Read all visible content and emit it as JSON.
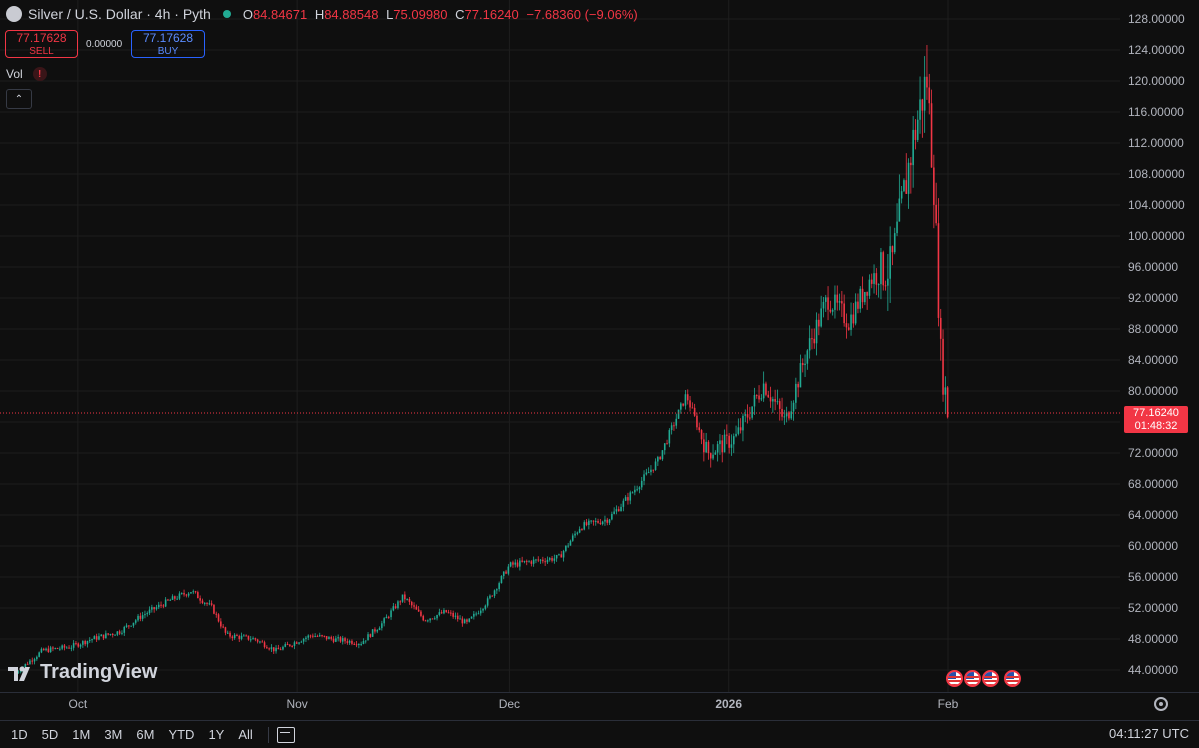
{
  "header": {
    "title": "Silver / U.S. Dollar · 4h · Pyth",
    "ohlc": {
      "o_key": "O",
      "o_val": "84.84671",
      "h_key": "H",
      "h_val": "84.88548",
      "l_key": "L",
      "l_val": "75.09980",
      "c_key": "C",
      "c_val": "77.16240",
      "change": "−7.68360 (−9.06%)"
    },
    "status_color": "#22ab94"
  },
  "trade": {
    "sell_price": "77.17628",
    "sell_label": "SELL",
    "spread": "0.00000",
    "buy_price": "77.17628",
    "buy_label": "BUY"
  },
  "indicators": {
    "vol_label": "Vol",
    "warn": "!",
    "collapse": "⌃"
  },
  "price_axis": {
    "labels": [
      "128.00000",
      "124.00000",
      "120.00000",
      "116.00000",
      "112.00000",
      "108.00000",
      "104.00000",
      "100.00000",
      "96.00000",
      "92.00000",
      "88.00000",
      "84.00000",
      "80.00000",
      "76.00000",
      "72.00000",
      "68.00000",
      "64.00000",
      "60.00000",
      "56.00000",
      "52.00000",
      "48.00000",
      "44.00000"
    ],
    "current_price": "77.16240",
    "countdown": "01:48:32"
  },
  "time_axis": {
    "labels": [
      "Oct",
      "Nov",
      "Dec",
      "2026",
      "Feb"
    ]
  },
  "branding": {
    "logo_text": "TradingView"
  },
  "bottom_bar": {
    "ranges": [
      "1D",
      "5D",
      "1M",
      "3M",
      "6M",
      "YTD",
      "1Y",
      "All"
    ],
    "clock": "04:11:27 UTC"
  },
  "colors": {
    "up": "#22ab94",
    "down": "#f23645",
    "background": "#0f0f0f",
    "grid": "#1e1e1e"
  },
  "chart_data": {
    "type": "candlestick",
    "symbol": "Silver / U.S. Dollar",
    "interval": "4h",
    "ylim": [
      42,
      130
    ],
    "points": [
      {
        "date": "2025-09-22",
        "close": 43.5
      },
      {
        "date": "2025-09-26",
        "close": 46.5
      },
      {
        "date": "2025-09-30",
        "close": 47.0
      },
      {
        "date": "2025-10-03",
        "close": 48.0
      },
      {
        "date": "2025-10-07",
        "close": 49.0
      },
      {
        "date": "2025-10-10",
        "close": 51.0
      },
      {
        "date": "2025-10-14",
        "close": 53.0
      },
      {
        "date": "2025-10-17",
        "close": 54.2
      },
      {
        "date": "2025-10-20",
        "close": 52.0
      },
      {
        "date": "2025-10-22",
        "close": 48.5
      },
      {
        "date": "2025-10-26",
        "close": 48.0
      },
      {
        "date": "2025-10-29",
        "close": 46.5
      },
      {
        "date": "2025-11-03",
        "close": 48.5
      },
      {
        "date": "2025-11-06",
        "close": 48.0
      },
      {
        "date": "2025-11-10",
        "close": 47.5
      },
      {
        "date": "2025-11-13",
        "close": 50.0
      },
      {
        "date": "2025-11-16",
        "close": 53.5
      },
      {
        "date": "2025-11-19",
        "close": 50.5
      },
      {
        "date": "2025-11-22",
        "close": 51.5
      },
      {
        "date": "2025-11-25",
        "close": 50.0
      },
      {
        "date": "2025-11-28",
        "close": 53.0
      },
      {
        "date": "2025-12-01",
        "close": 57.5
      },
      {
        "date": "2025-12-04",
        "close": 58.0
      },
      {
        "date": "2025-12-08",
        "close": 58.5
      },
      {
        "date": "2025-12-11",
        "close": 62.5
      },
      {
        "date": "2025-12-15",
        "close": 63.5
      },
      {
        "date": "2025-12-18",
        "close": 66.5
      },
      {
        "date": "2025-12-22",
        "close": 71.0
      },
      {
        "date": "2025-12-26",
        "close": 79.5
      },
      {
        "date": "2025-12-29",
        "close": 72.0
      },
      {
        "date": "2026-01-02",
        "close": 74.0
      },
      {
        "date": "2026-01-06",
        "close": 81.0
      },
      {
        "date": "2026-01-09",
        "close": 76.0
      },
      {
        "date": "2026-01-12",
        "close": 85.0
      },
      {
        "date": "2026-01-15",
        "close": 92.0
      },
      {
        "date": "2026-01-18",
        "close": 89.0
      },
      {
        "date": "2026-01-21",
        "close": 94.5
      },
      {
        "date": "2026-01-24",
        "close": 96.0
      },
      {
        "date": "2026-01-27",
        "close": 112.0
      },
      {
        "date": "2026-01-29",
        "close": 120.5
      },
      {
        "date": "2026-01-30",
        "close": 107.0
      },
      {
        "date": "2026-01-31",
        "close": 84.0
      },
      {
        "date": "2026-02-01",
        "close": 77.16
      }
    ]
  }
}
